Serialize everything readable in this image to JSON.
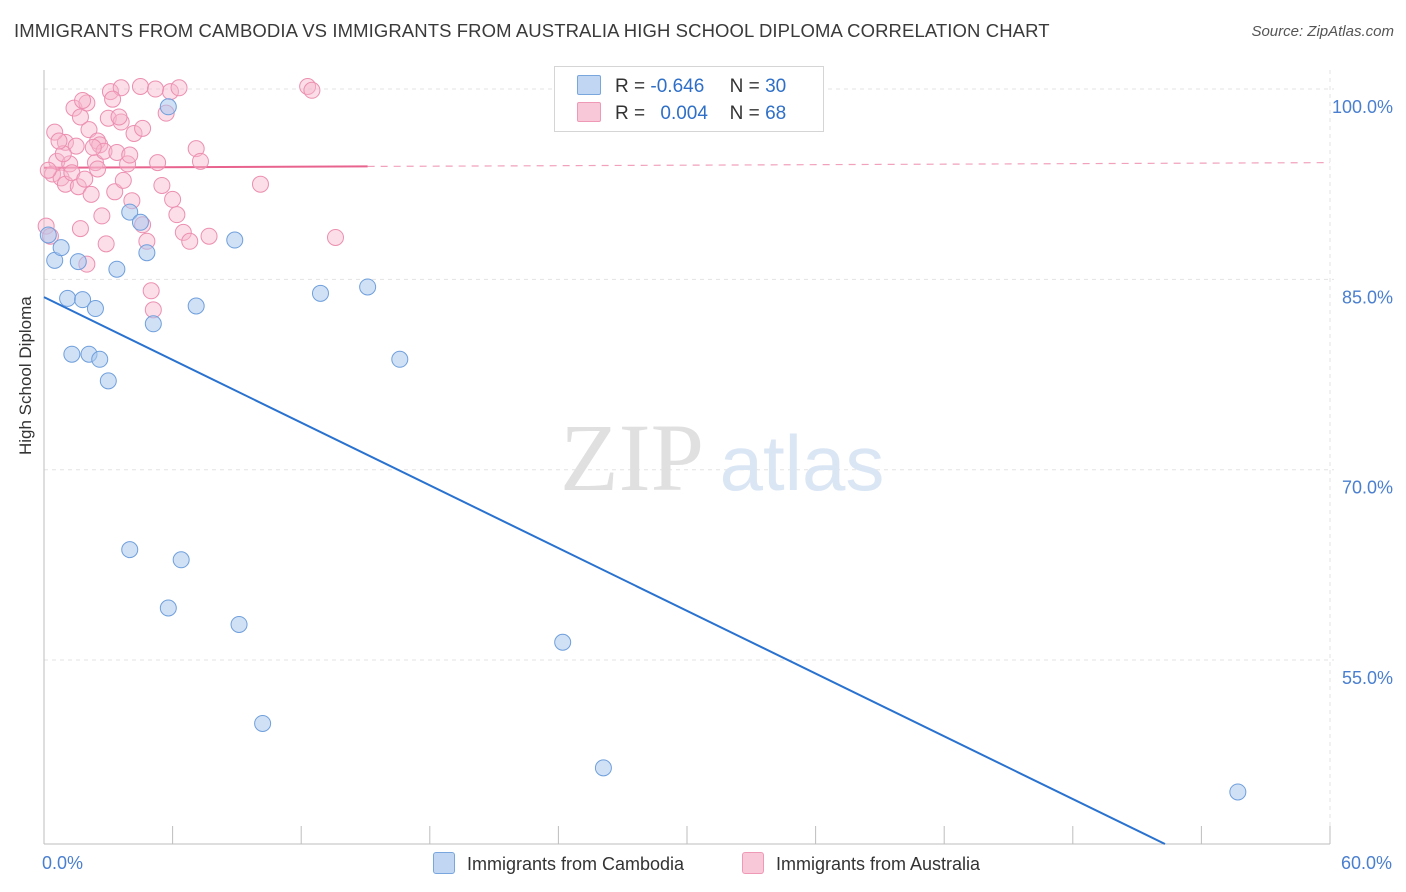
{
  "title": "IMMIGRANTS FROM CAMBODIA VS IMMIGRANTS FROM AUSTRALIA HIGH SCHOOL DIPLOMA CORRELATION CHART",
  "source": "Source: ZipAtlas.com",
  "watermark": {
    "zip": "ZIP",
    "atlas": "atlas"
  },
  "legend": {
    "r_label": "R =",
    "n_label": "N =",
    "series1": {
      "r": "-0.646",
      "n": "30"
    },
    "series2": {
      "r": "0.004",
      "n": "68"
    }
  },
  "bottom_legend": {
    "series1": "Immigrants from Cambodia",
    "series2": "Immigrants from Australia"
  },
  "colors": {
    "cambodia_fill": "#aac8ef",
    "cambodia_stroke": "#6f9fdc",
    "cambodia_line": "#2a72d0",
    "australia_fill": "#f7b6cc",
    "australia_stroke": "#ec8fb0",
    "australia_line": "#e8648f",
    "axis_text": "#4a7fcf",
    "grid": "#e3e3e3"
  },
  "chart_data": {
    "type": "scatter",
    "title": "IMMIGRANTS FROM CAMBODIA VS IMMIGRANTS FROM AUSTRALIA HIGH SCHOOL DIPLOMA CORRELATION CHART",
    "xlabel": "",
    "ylabel": "High School Diploma",
    "xlim": [
      0,
      60
    ],
    "ylim": [
      40.5,
      101.5
    ],
    "x_ticks": [
      {
        "value": 0,
        "label": "0.0%"
      },
      {
        "value": 60,
        "label": "60.0%"
      }
    ],
    "y_ticks": [
      {
        "value": 100,
        "label": "100.0%"
      },
      {
        "value": 85,
        "label": "85.0%"
      },
      {
        "value": 70,
        "label": "70.0%"
      },
      {
        "value": 55,
        "label": "55.0%"
      }
    ],
    "series": [
      {
        "name": "Immigrants from Cambodia",
        "r": -0.646,
        "n": 30,
        "points": [
          [
            0.2,
            88.5
          ],
          [
            0.5,
            86.5
          ],
          [
            0.8,
            87.5
          ],
          [
            1.1,
            83.5
          ],
          [
            1.6,
            86.4
          ],
          [
            1.8,
            83.4
          ],
          [
            2.4,
            82.7
          ],
          [
            1.3,
            79.1
          ],
          [
            2.1,
            79.1
          ],
          [
            2.6,
            78.7
          ],
          [
            3.0,
            77.0
          ],
          [
            3.4,
            85.8
          ],
          [
            4.0,
            90.3
          ],
          [
            4.5,
            89.5
          ],
          [
            4.8,
            87.1
          ],
          [
            5.1,
            81.5
          ],
          [
            5.8,
            98.6
          ],
          [
            7.1,
            82.9
          ],
          [
            8.9,
            88.1
          ],
          [
            12.9,
            83.9
          ],
          [
            15.1,
            84.4
          ],
          [
            16.6,
            78.7
          ],
          [
            4.0,
            63.7
          ],
          [
            6.4,
            62.9
          ],
          [
            5.8,
            59.1
          ],
          [
            9.1,
            57.8
          ],
          [
            10.2,
            50.0
          ],
          [
            24.2,
            56.4
          ],
          [
            26.1,
            46.5
          ],
          [
            55.7,
            44.6
          ]
        ],
        "trend": {
          "x0": 0,
          "y0": 83.6,
          "x1": 52.3,
          "y1": 40.5,
          "dashed_to_x": null
        }
      },
      {
        "name": "Immigrants from Australia",
        "r": 0.004,
        "n": 68,
        "points": [
          [
            0.1,
            89.2
          ],
          [
            0.3,
            88.4
          ],
          [
            0.4,
            93.3
          ],
          [
            0.6,
            94.3
          ],
          [
            0.8,
            93.0
          ],
          [
            1.0,
            95.8
          ],
          [
            1.2,
            94.1
          ],
          [
            1.0,
            92.5
          ],
          [
            1.3,
            93.4
          ],
          [
            1.5,
            95.5
          ],
          [
            1.6,
            92.3
          ],
          [
            1.7,
            89.0
          ],
          [
            1.9,
            92.9
          ],
          [
            2.0,
            86.2
          ],
          [
            2.1,
            96.8
          ],
          [
            2.2,
            91.7
          ],
          [
            2.4,
            94.2
          ],
          [
            2.5,
            95.9
          ],
          [
            2.6,
            95.6
          ],
          [
            2.7,
            90.0
          ],
          [
            2.8,
            95.1
          ],
          [
            2.9,
            87.8
          ],
          [
            3.0,
            97.7
          ],
          [
            3.1,
            99.8
          ],
          [
            3.3,
            91.9
          ],
          [
            3.4,
            95.0
          ],
          [
            3.6,
            100.1
          ],
          [
            3.7,
            92.8
          ],
          [
            3.9,
            94.1
          ],
          [
            4.1,
            91.2
          ],
          [
            4.2,
            96.5
          ],
          [
            4.5,
            100.2
          ],
          [
            4.6,
            89.3
          ],
          [
            4.8,
            88.0
          ],
          [
            5.0,
            84.1
          ],
          [
            5.1,
            82.6
          ],
          [
            5.3,
            94.2
          ],
          [
            5.5,
            92.4
          ],
          [
            5.9,
            99.8
          ],
          [
            6.0,
            91.3
          ],
          [
            6.2,
            90.1
          ],
          [
            6.5,
            88.7
          ],
          [
            6.8,
            88.0
          ],
          [
            7.1,
            95.3
          ],
          [
            7.3,
            94.3
          ],
          [
            7.7,
            88.4
          ],
          [
            1.4,
            98.5
          ],
          [
            1.7,
            97.8
          ],
          [
            2.0,
            98.9
          ],
          [
            2.5,
            93.7
          ],
          [
            3.2,
            99.2
          ],
          [
            3.6,
            97.4
          ],
          [
            4.0,
            94.8
          ],
          [
            4.6,
            96.9
          ],
          [
            5.2,
            100.0
          ],
          [
            5.7,
            98.1
          ],
          [
            6.3,
            100.1
          ],
          [
            0.5,
            96.6
          ],
          [
            0.9,
            94.9
          ],
          [
            1.8,
            99.1
          ],
          [
            2.3,
            95.4
          ],
          [
            3.5,
            97.8
          ],
          [
            10.1,
            92.5
          ],
          [
            12.3,
            100.2
          ],
          [
            12.5,
            99.9
          ],
          [
            13.6,
            88.3
          ],
          [
            0.2,
            93.6
          ],
          [
            0.7,
            95.9
          ]
        ],
        "trend": {
          "x0": 0,
          "y0": 93.8,
          "x1": 15.1,
          "y1": 93.9,
          "dashed_to_x": 60,
          "dashed_y1": 94.2
        }
      }
    ]
  }
}
